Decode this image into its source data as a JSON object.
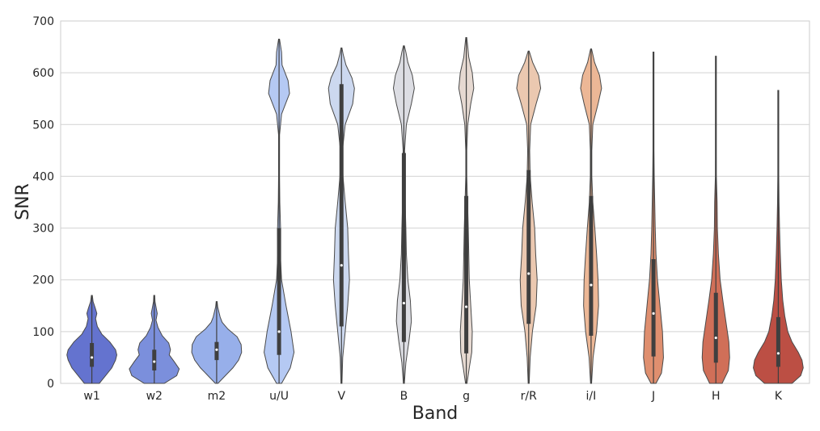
{
  "chart_data": {
    "type": "violin",
    "title": "",
    "xlabel": "Band",
    "ylabel": "SNR",
    "ylim": [
      0,
      700
    ],
    "yticks": [
      0,
      100,
      200,
      300,
      400,
      500,
      600,
      700
    ],
    "grid": "horizontal",
    "categories": [
      "w1",
      "w2",
      "m2",
      "u/U",
      "V",
      "B",
      "g",
      "r/R",
      "i/I",
      "J",
      "H",
      "K"
    ],
    "colors": [
      "#6473cf",
      "#7b8fdc",
      "#97afea",
      "#b5c9f3",
      "#ccd8ef",
      "#dcdde3",
      "#e6d9d1",
      "#ebc8b0",
      "#ecb796",
      "#df8f6f",
      "#d06f58",
      "#bc4f44"
    ],
    "violins": [
      {
        "band": "w1",
        "min": 0,
        "max": 170,
        "q1": 32,
        "median": 50,
        "q3": 78,
        "profile": [
          [
            0,
            0.3
          ],
          [
            15,
            0.55
          ],
          [
            30,
            0.8
          ],
          [
            45,
            0.95
          ],
          [
            55,
            1.0
          ],
          [
            65,
            0.95
          ],
          [
            80,
            0.72
          ],
          [
            95,
            0.4
          ],
          [
            110,
            0.22
          ],
          [
            125,
            0.15
          ],
          [
            135,
            0.2
          ],
          [
            145,
            0.14
          ],
          [
            158,
            0.05
          ],
          [
            170,
            0
          ]
        ]
      },
      {
        "band": "w2",
        "min": 0,
        "max": 170,
        "q1": 25,
        "median": 42,
        "q3": 65,
        "profile": [
          [
            0,
            0.4
          ],
          [
            15,
            0.9
          ],
          [
            28,
            1.0
          ],
          [
            42,
            0.8
          ],
          [
            55,
            0.6
          ],
          [
            65,
            0.65
          ],
          [
            78,
            0.58
          ],
          [
            92,
            0.32
          ],
          [
            108,
            0.15
          ],
          [
            122,
            0.07
          ],
          [
            135,
            0.12
          ],
          [
            145,
            0.08
          ],
          [
            158,
            0.03
          ],
          [
            170,
            0
          ]
        ]
      },
      {
        "band": "m2",
        "min": 0,
        "max": 158,
        "q1": 45,
        "median": 65,
        "q3": 80,
        "profile": [
          [
            0,
            0.05
          ],
          [
            15,
            0.35
          ],
          [
            30,
            0.65
          ],
          [
            45,
            0.88
          ],
          [
            60,
            1.0
          ],
          [
            75,
            0.98
          ],
          [
            90,
            0.82
          ],
          [
            105,
            0.45
          ],
          [
            118,
            0.22
          ],
          [
            128,
            0.14
          ],
          [
            138,
            0.09
          ],
          [
            148,
            0.04
          ],
          [
            158,
            0
          ]
        ]
      },
      {
        "band": "u/U",
        "min": 0,
        "max": 665,
        "q1": 55,
        "median": 100,
        "q3": 300,
        "profile": [
          [
            0,
            0.1
          ],
          [
            30,
            0.45
          ],
          [
            60,
            0.6
          ],
          [
            100,
            0.48
          ],
          [
            150,
            0.28
          ],
          [
            200,
            0.1
          ],
          [
            250,
            0.05
          ],
          [
            300,
            0.06
          ],
          [
            350,
            0.03
          ],
          [
            400,
            0.01
          ],
          [
            480,
            0.02
          ],
          [
            520,
            0.1
          ],
          [
            560,
            0.42
          ],
          [
            585,
            0.36
          ],
          [
            615,
            0.12
          ],
          [
            640,
            0.1
          ],
          [
            665,
            0
          ]
        ]
      },
      {
        "band": "V",
        "min": 0,
        "max": 648,
        "q1": 110,
        "median": 228,
        "q3": 578,
        "profile": [
          [
            0,
            0.02
          ],
          [
            50,
            0.05
          ],
          [
            100,
            0.15
          ],
          [
            150,
            0.25
          ],
          [
            200,
            0.32
          ],
          [
            250,
            0.28
          ],
          [
            300,
            0.25
          ],
          [
            350,
            0.15
          ],
          [
            400,
            0.06
          ],
          [
            450,
            0.04
          ],
          [
            500,
            0.15
          ],
          [
            540,
            0.45
          ],
          [
            570,
            0.52
          ],
          [
            590,
            0.42
          ],
          [
            615,
            0.18
          ],
          [
            635,
            0.07
          ],
          [
            648,
            0
          ]
        ]
      },
      {
        "band": "B",
        "min": 0,
        "max": 652,
        "q1": 80,
        "median": 155,
        "q3": 445,
        "profile": [
          [
            0,
            0.02
          ],
          [
            40,
            0.08
          ],
          [
            80,
            0.2
          ],
          [
            120,
            0.3
          ],
          [
            160,
            0.26
          ],
          [
            200,
            0.16
          ],
          [
            250,
            0.1
          ],
          [
            300,
            0.08
          ],
          [
            350,
            0.05
          ],
          [
            400,
            0.03
          ],
          [
            450,
            0.03
          ],
          [
            500,
            0.1
          ],
          [
            540,
            0.3
          ],
          [
            570,
            0.42
          ],
          [
            595,
            0.34
          ],
          [
            620,
            0.16
          ],
          [
            640,
            0.08
          ],
          [
            652,
            0
          ]
        ]
      },
      {
        "band": "g",
        "min": 0,
        "max": 668,
        "q1": 58,
        "median": 148,
        "q3": 362,
        "profile": [
          [
            0,
            0.03
          ],
          [
            30,
            0.12
          ],
          [
            60,
            0.22
          ],
          [
            100,
            0.24
          ],
          [
            150,
            0.18
          ],
          [
            200,
            0.12
          ],
          [
            250,
            0.1
          ],
          [
            300,
            0.08
          ],
          [
            350,
            0.05
          ],
          [
            400,
            0.02
          ],
          [
            450,
            0.02
          ],
          [
            500,
            0.06
          ],
          [
            540,
            0.18
          ],
          [
            570,
            0.3
          ],
          [
            600,
            0.24
          ],
          [
            630,
            0.1
          ],
          [
            650,
            0.06
          ],
          [
            668,
            0
          ]
        ]
      },
      {
        "band": "r/R",
        "min": 0,
        "max": 642,
        "q1": 115,
        "median": 212,
        "q3": 412,
        "profile": [
          [
            0,
            0.02
          ],
          [
            50,
            0.06
          ],
          [
            100,
            0.15
          ],
          [
            150,
            0.3
          ],
          [
            200,
            0.34
          ],
          [
            250,
            0.28
          ],
          [
            300,
            0.24
          ],
          [
            350,
            0.14
          ],
          [
            400,
            0.06
          ],
          [
            450,
            0.04
          ],
          [
            500,
            0.08
          ],
          [
            540,
            0.3
          ],
          [
            570,
            0.48
          ],
          [
            595,
            0.4
          ],
          [
            620,
            0.16
          ],
          [
            642,
            0
          ]
        ]
      },
      {
        "band": "i/I",
        "min": 0,
        "max": 646,
        "q1": 92,
        "median": 190,
        "q3": 362,
        "profile": [
          [
            0,
            0.02
          ],
          [
            50,
            0.08
          ],
          [
            100,
            0.22
          ],
          [
            150,
            0.3
          ],
          [
            200,
            0.28
          ],
          [
            250,
            0.22
          ],
          [
            300,
            0.15
          ],
          [
            350,
            0.07
          ],
          [
            400,
            0.03
          ],
          [
            450,
            0.03
          ],
          [
            500,
            0.07
          ],
          [
            540,
            0.28
          ],
          [
            570,
            0.42
          ],
          [
            595,
            0.34
          ],
          [
            620,
            0.14
          ],
          [
            646,
            0
          ]
        ]
      },
      {
        "band": "J",
        "min": 0,
        "max": 640,
        "q1": 52,
        "median": 135,
        "q3": 240,
        "profile": [
          [
            0,
            0.1
          ],
          [
            20,
            0.32
          ],
          [
            50,
            0.4
          ],
          [
            100,
            0.36
          ],
          [
            150,
            0.26
          ],
          [
            200,
            0.16
          ],
          [
            250,
            0.1
          ],
          [
            300,
            0.07
          ],
          [
            350,
            0.05
          ],
          [
            400,
            0.03
          ],
          [
            450,
            0.02
          ],
          [
            500,
            0.01
          ],
          [
            550,
            0.01
          ],
          [
            600,
            0.005
          ],
          [
            640,
            0
          ]
        ]
      },
      {
        "band": "H",
        "min": 0,
        "max": 632,
        "q1": 40,
        "median": 88,
        "q3": 175,
        "profile": [
          [
            0,
            0.25
          ],
          [
            25,
            0.5
          ],
          [
            50,
            0.55
          ],
          [
            80,
            0.52
          ],
          [
            120,
            0.4
          ],
          [
            160,
            0.28
          ],
          [
            200,
            0.17
          ],
          [
            250,
            0.1
          ],
          [
            300,
            0.06
          ],
          [
            350,
            0.05
          ],
          [
            400,
            0.02
          ],
          [
            450,
            0.01
          ],
          [
            500,
            0.005
          ],
          [
            550,
            0.004
          ],
          [
            600,
            0.003
          ],
          [
            632,
            0
          ]
        ]
      },
      {
        "band": "K",
        "min": 0,
        "max": 566,
        "q1": 32,
        "median": 58,
        "q3": 128,
        "profile": [
          [
            0,
            0.55
          ],
          [
            15,
            0.9
          ],
          [
            30,
            1.0
          ],
          [
            45,
            0.95
          ],
          [
            60,
            0.8
          ],
          [
            80,
            0.55
          ],
          [
            100,
            0.38
          ],
          [
            130,
            0.26
          ],
          [
            160,
            0.18
          ],
          [
            200,
            0.12
          ],
          [
            250,
            0.08
          ],
          [
            300,
            0.05
          ],
          [
            350,
            0.03
          ],
          [
            400,
            0.015
          ],
          [
            450,
            0.008
          ],
          [
            500,
            0.004
          ],
          [
            566,
            0
          ]
        ]
      }
    ]
  }
}
